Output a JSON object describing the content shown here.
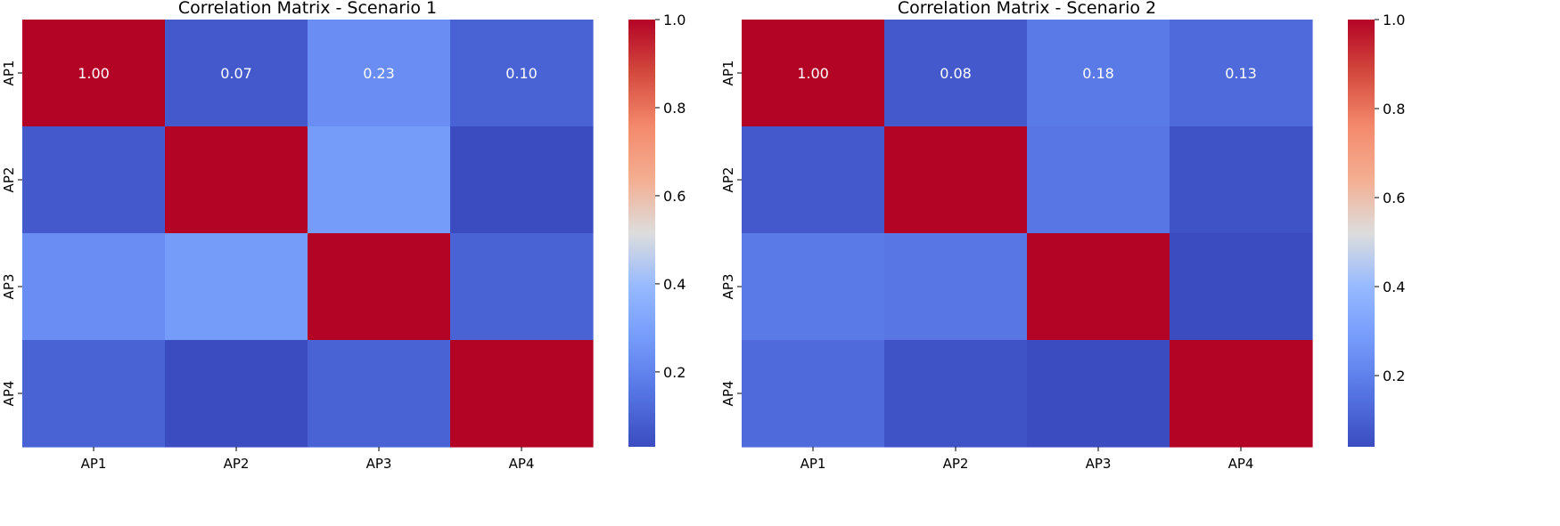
{
  "chart_data": [
    {
      "type": "heatmap",
      "title": "Correlation Matrix - Scenario 1",
      "x_categories": [
        "AP1",
        "AP2",
        "AP3",
        "AP4"
      ],
      "y_categories": [
        "AP1",
        "AP2",
        "AP3",
        "AP4"
      ],
      "values": [
        [
          1.0,
          0.07,
          0.23,
          0.1
        ],
        [
          0.07,
          1.0,
          0.28,
          0.03
        ],
        [
          0.23,
          0.28,
          1.0,
          0.1
        ],
        [
          0.1,
          0.03,
          0.1,
          1.0
        ]
      ],
      "annotated_row": 0,
      "value_format": "2 decimals",
      "colormap": "coolwarm",
      "vmin": 0.03,
      "vmax": 1.0,
      "colorbar_ticks": [
        0.2,
        0.4,
        0.6,
        0.8,
        1.0
      ],
      "colorbar_tick_labels": [
        "0.2",
        "0.4",
        "0.6",
        "0.8",
        "1.0"
      ]
    },
    {
      "type": "heatmap",
      "title": "Correlation Matrix - Scenario 2",
      "x_categories": [
        "AP1",
        "AP2",
        "AP3",
        "AP4"
      ],
      "y_categories": [
        "AP1",
        "AP2",
        "AP3",
        "AP4"
      ],
      "values": [
        [
          1.0,
          0.08,
          0.18,
          0.13
        ],
        [
          0.08,
          1.0,
          0.17,
          0.06
        ],
        [
          0.18,
          0.17,
          1.0,
          0.04
        ],
        [
          0.13,
          0.06,
          0.04,
          1.0
        ]
      ],
      "annotated_row": 0,
      "value_format": "2 decimals",
      "colormap": "coolwarm",
      "vmin": 0.04,
      "vmax": 1.0,
      "colorbar_ticks": [
        0.2,
        0.4,
        0.6,
        0.8,
        1.0
      ],
      "colorbar_tick_labels": [
        "0.2",
        "0.4",
        "0.6",
        "0.8",
        "1.0"
      ]
    }
  ]
}
